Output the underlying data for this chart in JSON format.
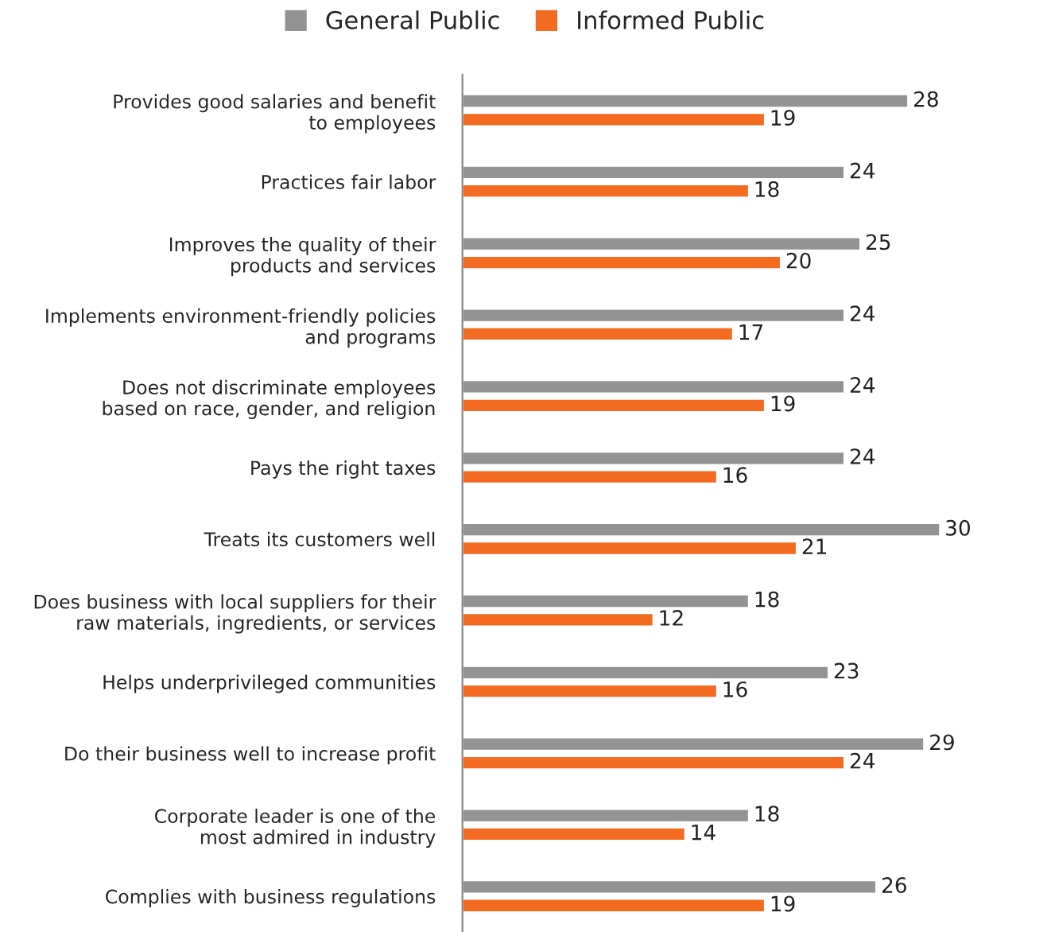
{
  "chart_data": {
    "type": "bar",
    "orientation": "horizontal",
    "data_labels": true,
    "legend": "top",
    "grid": false,
    "categories": [
      "Provides good salaries and benefit\nto employees",
      "Practices fair labor",
      "Improves the quality of their\nproducts and services",
      "Implements environment-friendly policies\nand programs",
      "Does not discriminate employees\nbased on race, gender, and religion",
      "Pays the right taxes",
      "Treats its customers well",
      "Does business with local suppliers for their\nraw materials, ingredients, or services",
      "Helps underprivileged communities",
      "Do their business well to increase profit",
      "Corporate leader is one of the\nmost admired in industry",
      "Complies with business regulations"
    ],
    "series": [
      {
        "name": "General Public",
        "color": "#939393",
        "values": [
          28,
          24,
          25,
          24,
          24,
          24,
          30,
          18,
          23,
          29,
          18,
          26
        ]
      },
      {
        "name": "Informed Public",
        "color": "#f26b21",
        "values": [
          19,
          18,
          20,
          17,
          19,
          16,
          21,
          12,
          16,
          24,
          14,
          19
        ]
      }
    ]
  }
}
